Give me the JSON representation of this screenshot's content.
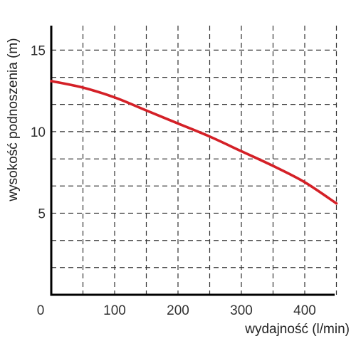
{
  "chart_data": {
    "type": "line",
    "title": "",
    "xlabel": "wydajność (l/min)",
    "ylabel": "wysokość podnoszenia (m)",
    "xlim": [
      0,
      450
    ],
    "ylim": [
      0,
      16.5
    ],
    "x_ticks": [
      0,
      100,
      200,
      300,
      400
    ],
    "x_tick_labels": [
      "0",
      "100",
      "200",
      "300",
      "400"
    ],
    "y_ticks": [
      5,
      10,
      15
    ],
    "y_tick_labels": [
      "5",
      "10",
      "15"
    ],
    "grid": true,
    "grid_style": "dashed",
    "x_gridlines": [
      50,
      100,
      150,
      200,
      250,
      300,
      350,
      400,
      450
    ],
    "y_gridlines": [
      1.67,
      3.33,
      5,
      6.67,
      8.33,
      10,
      11.67,
      13.33,
      15
    ],
    "series": [
      {
        "color": "#d42027",
        "x": [
          0,
          50,
          100,
          150,
          200,
          250,
          300,
          350,
          400,
          450
        ],
        "y": [
          13.1,
          12.7,
          12.1,
          11.3,
          10.5,
          9.7,
          8.8,
          7.9,
          6.9,
          5.6
        ]
      }
    ]
  }
}
